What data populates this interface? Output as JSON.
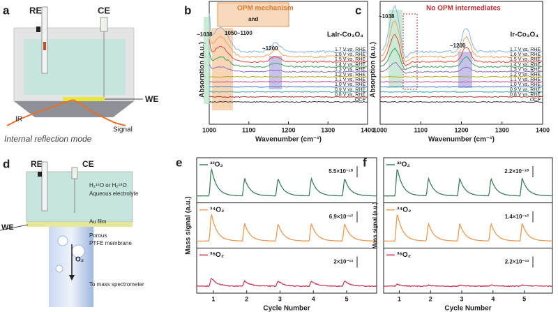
{
  "a": {
    "label": "a",
    "re": "RE",
    "ce": "CE",
    "we": "WE",
    "ir": "IR",
    "signal": "Signal",
    "caption": "Internal reflection mode"
  },
  "b": {
    "label": "b",
    "title": "LaIr-Co₃O₄",
    "ylabel": "Absorption (a.u.)",
    "xlabel": "Wavenumber (cm⁻¹)",
    "xlim": [
      1000,
      1400
    ],
    "xticks": [
      1000,
      1100,
      1200,
      1300,
      1400
    ],
    "potentials": [
      "1.7 V vs. RHE",
      "1.6 V vs. RHE",
      "1.5 V vs. RHE",
      "1.4 V vs. RHE",
      "1.3 V vs. RHE",
      "1.2 V vs. RHE",
      "1.1 V vs. RHE",
      "1.0 V vs. RHE",
      "0.9 V vs. RHE",
      "0.8 V vs. RHE",
      "OCP"
    ],
    "line_colors": [
      "#86b4e3",
      "#f2a35e",
      "#e2483f",
      "#3f9e5c",
      "#8a6cc2",
      "#b5a21e",
      "#c24aa0",
      "#4673c4",
      "#2f9f8f",
      "#a3312f",
      "#333333"
    ],
    "annotations": {
      "peak1": "~1038",
      "peak2": "1050~1100",
      "peak3": "~1200",
      "mechanism": "OPM mechanism",
      "and": "and"
    }
  },
  "c": {
    "label": "c",
    "title": "Ir-Co₃O₄",
    "ylabel": "Absorption (a.u.)",
    "xlabel": "Wavenumber (cm⁻¹)",
    "xlim": [
      1000,
      1400
    ],
    "xticks": [
      1000,
      1100,
      1200,
      1300,
      1400
    ],
    "potentials": [
      "1.7 V vs. RHE",
      "1.6 V vs. RHE",
      "1.5 V vs. RHE",
      "1.4 V vs. RHE",
      "1.3 V vs. RHE",
      "1.2 V vs. RHE",
      "1.1 V vs. RHE",
      "1.0 V vs. RHE",
      "0.9 V vs. RHE",
      "0.8 V vs. RHE",
      "OCP"
    ],
    "line_colors": [
      "#86b4e3",
      "#f2a35e",
      "#e2483f",
      "#3f9e5c",
      "#8a6cc2",
      "#b5a21e",
      "#c24aa0",
      "#4673c4",
      "#2f9f8f",
      "#a3312f",
      "#333333"
    ],
    "annotations": {
      "peak1": "~1038",
      "peak3": "~1200",
      "note": "No OPM intermediates"
    }
  },
  "d": {
    "label": "d",
    "re": "RE",
    "ce": "CE",
    "we": "WE",
    "water": "H₂¹⁶O or H₂¹⁸O",
    "electrolyte": "Aqueous electrolyte",
    "film": "Au film",
    "porous": "Porous",
    "membrane": "PTFE membrane",
    "o2": "O₂",
    "ms": "To mass spectrometer"
  },
  "e": {
    "label": "e",
    "ylabel": "Mass signal (a.u.)",
    "xlabel": "Cycle Number",
    "xlim": [
      0.5,
      5.9
    ],
    "xticks": [
      1,
      2,
      3,
      4,
      5
    ],
    "traces": [
      {
        "name": "³²O₂",
        "color": "#3d7d5c",
        "scale": "5.5×10⁻¹⁰"
      },
      {
        "name": "³⁴O₂",
        "color": "#e99a54",
        "scale": "6.9×10⁻¹²"
      },
      {
        "name": "³⁶O₂",
        "color": "#c63a55",
        "scale": "2×10⁻¹³"
      }
    ]
  },
  "f": {
    "label": "f",
    "ylabel": "Mass signal (a.u.)",
    "xlabel": "Cycle Number",
    "xlim": [
      0.5,
      5.9
    ],
    "xticks": [
      1,
      2,
      3,
      4,
      5
    ],
    "traces": [
      {
        "name": "³²O₂",
        "color": "#3d7d5c",
        "scale": "2.2×10⁻¹⁰"
      },
      {
        "name": "³⁴O₂",
        "color": "#e99a54",
        "scale": "1.4×10⁻¹²"
      },
      {
        "name": "³⁶O₂",
        "color": "#c63a55",
        "scale": "2.2×10⁻¹³"
      }
    ]
  }
}
